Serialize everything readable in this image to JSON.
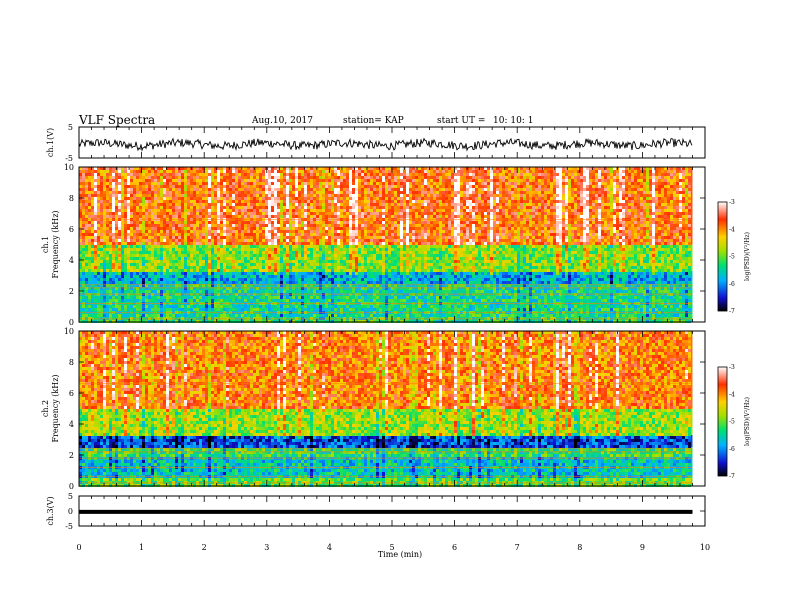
{
  "header": {
    "title": "VLF Spectra",
    "date": "Aug.10, 2017",
    "station": "station= KAP",
    "start": "start UT =",
    "start_time": "10: 10: 1"
  },
  "chart_data": [
    {
      "type": "line",
      "name": "ch1-waveform",
      "ylabel": "ch.1(V)",
      "ylim": [
        -5,
        5
      ],
      "yticks": [
        "5",
        "-5"
      ],
      "xlim": [
        0,
        10
      ],
      "data_extent_min": 9.8,
      "baseline": -0.6,
      "amplitude": 1.4
    },
    {
      "type": "heatmap",
      "name": "ch1-spectrogram",
      "ylabel_channel": "ch.1",
      "ylabel": "Frequency (kHz)",
      "ylim": [
        0,
        10
      ],
      "yticks": [
        0,
        2,
        4,
        6,
        8,
        10
      ],
      "xlim": [
        0,
        10
      ],
      "data_extent_min": 9.8,
      "colorbar": {
        "label": "log(PSD)(V²/Hz)",
        "range": [
          -7,
          -3
        ],
        "ticks": [
          "-3",
          "-4",
          "-5",
          "-6",
          "-7"
        ]
      },
      "bands": [
        {
          "fmin": 0.0,
          "fmax": 0.5,
          "level": -5.2
        },
        {
          "fmin": 0.5,
          "fmax": 2.6,
          "level": -5.4
        },
        {
          "fmin": 2.6,
          "fmax": 3.3,
          "level": -5.8
        },
        {
          "fmin": 3.3,
          "fmax": 5.0,
          "level": -4.9
        },
        {
          "fmin": 5.0,
          "fmax": 10.0,
          "level": -3.8
        }
      ]
    },
    {
      "type": "heatmap",
      "name": "ch2-spectrogram",
      "ylabel_channel": "ch.2",
      "ylabel": "Frequency (kHz)",
      "ylim": [
        0,
        10
      ],
      "yticks": [
        0,
        2,
        4,
        6,
        8,
        10
      ],
      "xlim": [
        0,
        10
      ],
      "data_extent_min": 9.8,
      "colorbar": {
        "label": "log(PSD)(V²/Hz)",
        "range": [
          -7,
          -3
        ],
        "ticks": [
          "-3",
          "-4",
          "-5",
          "-6",
          "-7"
        ]
      },
      "bands": [
        {
          "fmin": 0.0,
          "fmax": 0.6,
          "level": -5.0
        },
        {
          "fmin": 0.6,
          "fmax": 2.0,
          "level": -5.6
        },
        {
          "fmin": 2.0,
          "fmax": 2.5,
          "level": -5.2
        },
        {
          "fmin": 2.5,
          "fmax": 3.3,
          "level": -6.3
        },
        {
          "fmin": 3.3,
          "fmax": 5.0,
          "level": -4.8
        },
        {
          "fmin": 5.0,
          "fmax": 10.0,
          "level": -3.9
        }
      ]
    },
    {
      "type": "line",
      "name": "ch3-waveform",
      "ylabel": "ch.3(V)",
      "ylim": [
        -5,
        5
      ],
      "yticks": [
        "5",
        "0",
        "-5"
      ],
      "xlim": [
        0,
        10
      ],
      "data_extent_min": 9.8,
      "baseline": -0.3,
      "amplitude": 0.3
    }
  ],
  "xaxis": {
    "label": "Time (min)",
    "ticks": [
      "0",
      "1",
      "2",
      "3",
      "4",
      "5",
      "6",
      "7",
      "8",
      "9",
      "10"
    ]
  }
}
